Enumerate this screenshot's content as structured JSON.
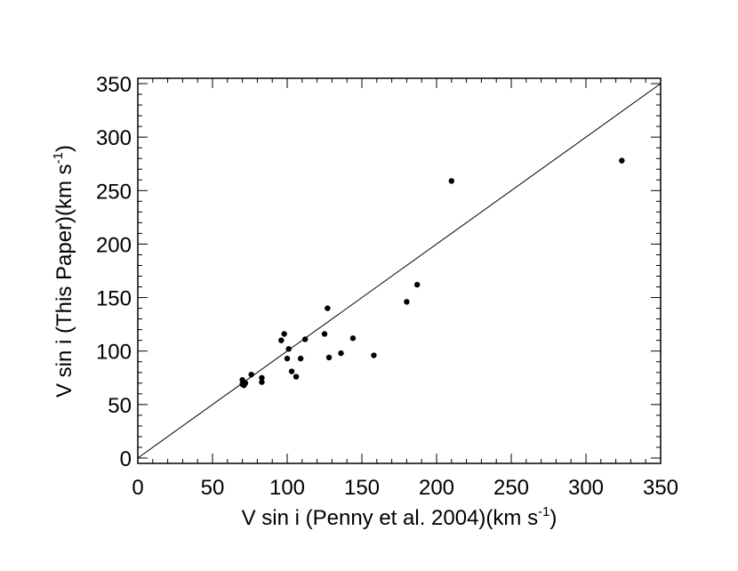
{
  "chart_data": {
    "type": "scatter",
    "title": "",
    "xlabel": "V sin i (Penny et al. 2004)(km s",
    "xlabel_sup": "-1",
    "xlabel_end": ")",
    "ylabel": "V sin i (This Paper)(km s",
    "ylabel_sup": "-1",
    "ylabel_end": ")",
    "xlim": [
      0,
      350
    ],
    "ylim": [
      -5,
      355
    ],
    "xticks": [
      0,
      50,
      100,
      150,
      200,
      250,
      300,
      350
    ],
    "yticks": [
      0,
      50,
      100,
      150,
      200,
      250,
      300,
      350
    ],
    "grid": false,
    "reference_line": {
      "x": [
        0,
        350
      ],
      "y": [
        0,
        350
      ]
    },
    "points": [
      {
        "x": 70,
        "y": 73
      },
      {
        "x": 70,
        "y": 69
      },
      {
        "x": 71,
        "y": 68
      },
      {
        "x": 72,
        "y": 70
      },
      {
        "x": 76,
        "y": 78
      },
      {
        "x": 83,
        "y": 75
      },
      {
        "x": 83,
        "y": 71
      },
      {
        "x": 96,
        "y": 110
      },
      {
        "x": 98,
        "y": 116
      },
      {
        "x": 100,
        "y": 93
      },
      {
        "x": 101,
        "y": 102
      },
      {
        "x": 103,
        "y": 81
      },
      {
        "x": 106,
        "y": 76
      },
      {
        "x": 109,
        "y": 93
      },
      {
        "x": 112,
        "y": 111
      },
      {
        "x": 125,
        "y": 116
      },
      {
        "x": 127,
        "y": 140
      },
      {
        "x": 128,
        "y": 94
      },
      {
        "x": 136,
        "y": 98
      },
      {
        "x": 144,
        "y": 112
      },
      {
        "x": 158,
        "y": 96
      },
      {
        "x": 180,
        "y": 146
      },
      {
        "x": 187,
        "y": 162
      },
      {
        "x": 210,
        "y": 259
      },
      {
        "x": 324,
        "y": 278
      }
    ]
  }
}
